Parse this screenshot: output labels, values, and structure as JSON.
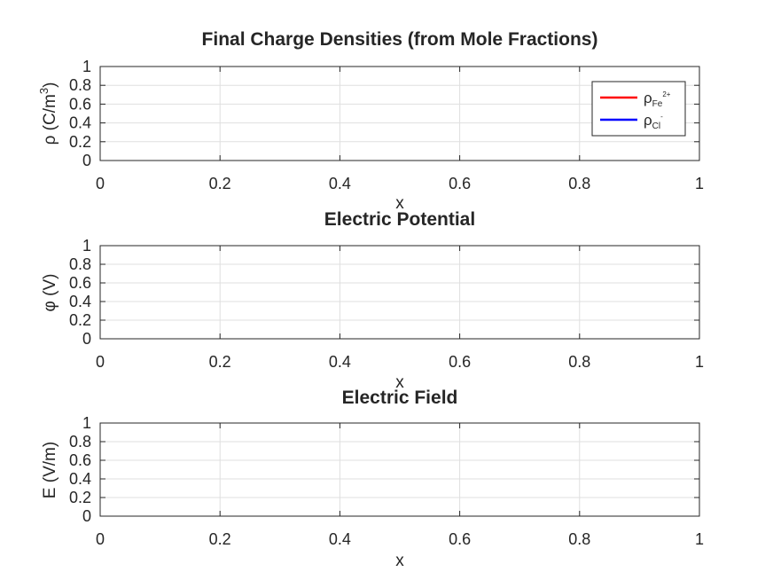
{
  "chart_data": [
    {
      "type": "line",
      "title": "Final Charge Densities (from Mole Fractions)",
      "xlabel": "x",
      "ylabel": "ρ (C/m",
      "ylabel_sup": "3",
      "ylabel_close": ")",
      "xlim": [
        0,
        1
      ],
      "ylim": [
        0,
        1
      ],
      "xticks": [
        "0",
        "0.2",
        "0.4",
        "0.6",
        "0.8",
        "1"
      ],
      "yticks": [
        "0",
        "0.2",
        "0.4",
        "0.6",
        "0.8",
        "1"
      ],
      "grid": true,
      "legend_position": "top-right",
      "series": [
        {
          "name": "ρ",
          "name_sub": "Fe",
          "name_sup": "2+",
          "color": "#ff0000",
          "x": [],
          "y": []
        },
        {
          "name": "ρ",
          "name_sub": "Cl",
          "name_sup": "-",
          "color": "#0000ff",
          "x": [],
          "y": []
        }
      ]
    },
    {
      "type": "line",
      "title": "Electric Potential",
      "xlabel": "x",
      "ylabel": "φ (V)",
      "xlim": [
        0,
        1
      ],
      "ylim": [
        0,
        1
      ],
      "xticks": [
        "0",
        "0.2",
        "0.4",
        "0.6",
        "0.8",
        "1"
      ],
      "yticks": [
        "0",
        "0.2",
        "0.4",
        "0.6",
        "0.8",
        "1"
      ],
      "grid": true,
      "series": []
    },
    {
      "type": "line",
      "title": "Electric Field",
      "xlabel": "x",
      "ylabel": "E (V/m)",
      "xlim": [
        0,
        1
      ],
      "ylim": [
        0,
        1
      ],
      "xticks": [
        "0",
        "0.2",
        "0.4",
        "0.6",
        "0.8",
        "1"
      ],
      "yticks": [
        "0",
        "0.2",
        "0.4",
        "0.6",
        "0.8",
        "1"
      ],
      "grid": true,
      "series": []
    }
  ]
}
